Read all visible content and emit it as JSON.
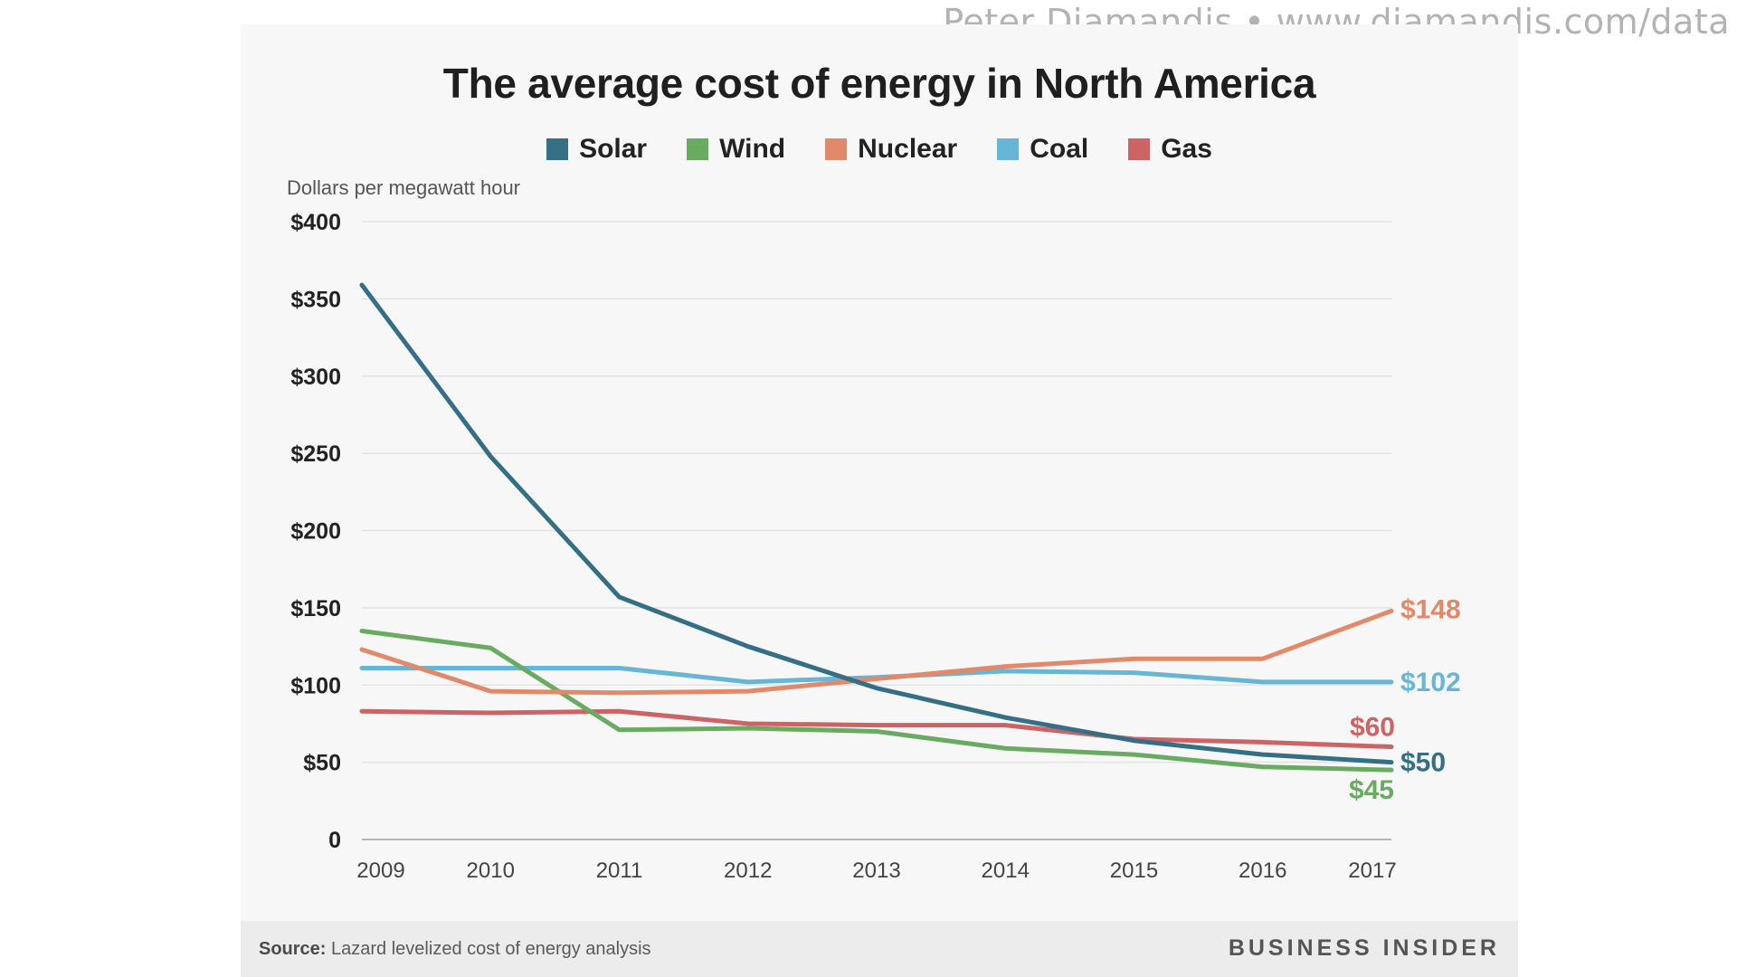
{
  "watermark": "Peter Diamandis  •  www.diamandis.com/data",
  "chart_data": {
    "type": "line",
    "title": "The average cost of energy in North America",
    "ylabel": "Dollars per megawatt hour",
    "xlabel": "",
    "ylim": [
      0,
      400
    ],
    "yticks": [
      0,
      50,
      100,
      150,
      200,
      250,
      300,
      350,
      400
    ],
    "ytick_labels": [
      "0",
      "$50",
      "$100",
      "$150",
      "$200",
      "$250",
      "$300",
      "$350",
      "$400"
    ],
    "categories": [
      "2009",
      "2010",
      "2011",
      "2012",
      "2013",
      "2014",
      "2015",
      "2016",
      "2017"
    ],
    "grid": true,
    "legend_position": "top-center",
    "series": [
      {
        "name": "Solar",
        "color": "#356f86",
        "values": [
          359,
          248,
          157,
          125,
          98,
          79,
          64,
          55,
          50
        ],
        "end_label": "$50"
      },
      {
        "name": "Wind",
        "color": "#6aab62",
        "values": [
          135,
          124,
          71,
          72,
          70,
          59,
          55,
          47,
          45
        ],
        "end_label": "$45"
      },
      {
        "name": "Nuclear",
        "color": "#e2896a",
        "values": [
          123,
          96,
          95,
          96,
          104,
          112,
          117,
          117,
          148
        ],
        "end_label": "$148"
      },
      {
        "name": "Coal",
        "color": "#67b6d8",
        "values": [
          111,
          111,
          111,
          102,
          105,
          109,
          108,
          102,
          102
        ],
        "end_label": "$102"
      },
      {
        "name": "Gas",
        "color": "#cc6466",
        "values": [
          83,
          82,
          83,
          75,
          74,
          74,
          65,
          63,
          60
        ],
        "end_label": "$60"
      }
    ]
  },
  "footer": {
    "source_label": "Source:",
    "source_text": "Lazard levelized cost of energy analysis",
    "brand": "BUSINESS INSIDER"
  }
}
